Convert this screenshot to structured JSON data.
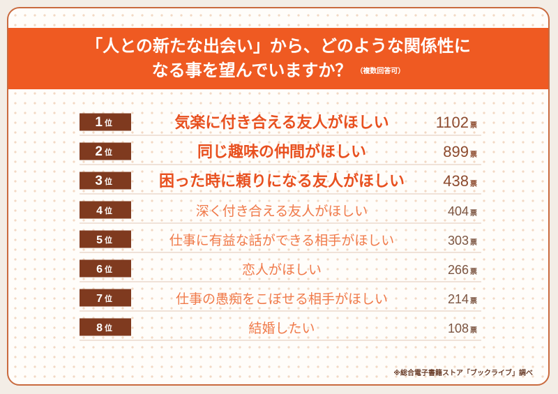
{
  "title_line1": "「人との新たな出会い」から、どのような関係性に",
  "title_line2": "なる事を望んでいますか？",
  "title_note": "（複数回答可）",
  "rank_suffix": "位",
  "vote_unit": "票",
  "source": "※総合電子書籍ストア「ブックライブ」調べ",
  "colors": {
    "header_bg": "#ef5a22",
    "badge_bg": "#7f3a1f",
    "top_label": "#e8501f",
    "lower_label": "#f07a4a",
    "top_number": "#8c4a2e",
    "lower_number": "#7b5542"
  },
  "chart_data": {
    "type": "table",
    "title": "「人との新たな出会い」から、どのような関係性になる事を望んでいますか？",
    "rows": [
      {
        "rank": "1",
        "label": "気楽に付き合える友人がほしい",
        "votes": 1102
      },
      {
        "rank": "2",
        "label": "同じ趣味の仲間がほしい",
        "votes": 899
      },
      {
        "rank": "3",
        "label": "困った時に頼りになる友人がほしい",
        "votes": 438
      },
      {
        "rank": "4",
        "label": "深く付き合える友人がほしい",
        "votes": 404
      },
      {
        "rank": "5",
        "label": "仕事に有益な話ができる相手がほしい",
        "votes": 303
      },
      {
        "rank": "6",
        "label": "恋人がほしい",
        "votes": 266
      },
      {
        "rank": "7",
        "label": "仕事の愚痴をこぼせる相手がほしい",
        "votes": 214
      },
      {
        "rank": "8",
        "label": "結婚したい",
        "votes": 108
      }
    ]
  }
}
